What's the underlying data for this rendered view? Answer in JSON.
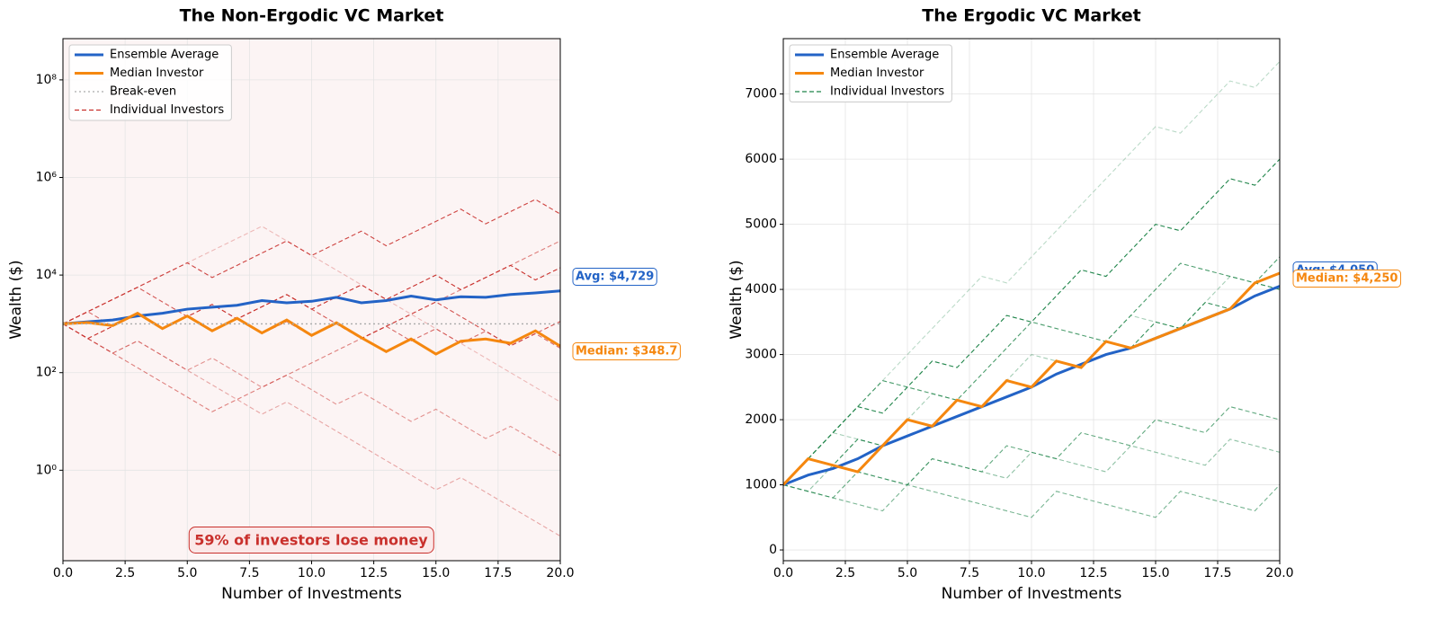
{
  "chart_data": [
    {
      "type": "line",
      "title": "The Non-Ergodic VC Market",
      "xlabel": "Number of Investments",
      "ylabel": "Wealth ($)",
      "ylog": true,
      "grid": true,
      "legend": "upper left",
      "background": "#fcf4f4",
      "x": [
        0,
        1,
        2,
        3,
        4,
        5,
        6,
        7,
        8,
        9,
        10,
        11,
        12,
        13,
        14,
        15,
        16,
        17,
        18,
        19,
        20
      ],
      "xlim": [
        0,
        20
      ],
      "xticks": [
        {
          "value": 0,
          "label": "0.0"
        },
        2.5,
        {
          "value": 5,
          "label": "5.0"
        },
        7.5,
        {
          "value": 10,
          "label": "10.0"
        },
        12.5,
        {
          "value": 15,
          "label": "15.0"
        },
        17.5,
        {
          "value": 20,
          "label": "20.0"
        }
      ],
      "ylim": [
        0.014,
        700000000
      ],
      "yticks": [
        {
          "value": 1,
          "label": "10⁰"
        },
        {
          "value": 100,
          "label": "10²"
        },
        {
          "value": 10000,
          "label": "10⁴"
        },
        {
          "value": 1000000,
          "label": "10⁶"
        },
        {
          "value": 100000000,
          "label": "10⁸"
        }
      ],
      "series": [
        {
          "name": "Ensemble Average",
          "color": "#2363c6",
          "style": "solid",
          "values": [
            1000,
            1100,
            1200,
            1450,
            1650,
            2000,
            2200,
            2400,
            3000,
            2700,
            2900,
            3500,
            2700,
            3000,
            3700,
            3100,
            3600,
            3500,
            4000,
            4300,
            4729
          ]
        },
        {
          "name": "Median Investor",
          "color": "#f5870f",
          "style": "solid",
          "values": [
            1000,
            1060,
            920,
            1650,
            800,
            1450,
            720,
            1300,
            650,
            1200,
            580,
            1050,
            520,
            270,
            490,
            240,
            440,
            490,
            400,
            720,
            348.7
          ]
        },
        {
          "name": "Break-even",
          "color": "#aaaaaa",
          "style": "dotted",
          "value": 1000
        },
        {
          "name": "Individual Investors",
          "color": "#c9302c",
          "style": "dashed",
          "paths": [
            [
              1000,
              1780,
              3160,
              5620,
              10000,
              17800,
              31600,
              56200,
              100000,
              50100,
              25100,
              12600,
              6310,
              3160,
              1580,
              794,
              398,
              200,
              100,
              50.1,
              25.1
            ],
            [
              1000,
              501,
              251,
              126,
              63.1,
              31.6,
              15.8,
              28.2,
              50.1,
              89.1,
              158,
              282,
              501,
              891,
              1580,
              2820,
              5010,
              8910,
              15800,
              28200,
              50100
            ],
            [
              1000,
              1780,
              3160,
              5620,
              10000,
              17800,
              8910,
              15800,
              28200,
              50100,
              25100,
              44700,
              79400,
              39800,
              70800,
              126000,
              224000,
              112000,
              200000,
              355000,
              178000
            ],
            [
              1000,
              501,
              251,
              447,
              224,
              112,
              56.2,
              28.2,
              14.1,
              25.1,
              12.6,
              6.31,
              3.16,
              1.58,
              0.794,
              0.398,
              0.708,
              0.355,
              0.178,
              0.0891,
              0.0447
            ],
            [
              1000,
              1780,
              891,
              1580,
              794,
              1410,
              708,
              1260,
              631,
              1120,
              562,
              1000,
              501,
              891,
              447,
              794,
              398,
              708,
              355,
              631,
              316
            ],
            [
              1000,
              501,
              891,
              1580,
              794,
              1410,
              2510,
              1260,
              2240,
              3980,
              2000,
              3550,
              6310,
              3160,
              5620,
              10000,
              5010,
              8910,
              15800,
              7940,
              14100
            ],
            [
              1000,
              501,
              251,
              447,
              224,
              112,
              200,
              100,
              50.1,
              89.1,
              44.7,
              22.4,
              39.8,
              20,
              10,
              17.8,
              8.91,
              4.47,
              7.94,
              3.98,
              2
            ],
            [
              1000,
              1780,
              3160,
              5620,
              2820,
              1410,
              708,
              1260,
              2240,
              3980,
              2000,
              1000,
              501,
              891,
              1580,
              2820,
              1410,
              708,
              355,
              631,
              1120
            ]
          ]
        }
      ],
      "annotations": [
        {
          "text": "Avg: $4,729",
          "color": "#2363c6"
        },
        {
          "text": "Median: $348.7",
          "color": "#f5870f"
        },
        {
          "text": "59% of investors lose money",
          "color": "#c9302c"
        }
      ]
    },
    {
      "type": "line",
      "title": "The Ergodic VC Market",
      "xlabel": "Number of Investments",
      "ylabel": "Wealth ($)",
      "ylog": false,
      "grid": true,
      "legend": "upper left",
      "background": "#ffffff",
      "x": [
        0,
        1,
        2,
        3,
        4,
        5,
        6,
        7,
        8,
        9,
        10,
        11,
        12,
        13,
        14,
        15,
        16,
        17,
        18,
        19,
        20
      ],
      "xlim": [
        0,
        20
      ],
      "xticks": [
        {
          "value": 0,
          "label": "0.0"
        },
        2.5,
        {
          "value": 5,
          "label": "5.0"
        },
        7.5,
        {
          "value": 10,
          "label": "10.0"
        },
        12.5,
        {
          "value": 15,
          "label": "15.0"
        },
        17.5,
        {
          "value": 20,
          "label": "20.0"
        }
      ],
      "ylim": [
        -165,
        7850
      ],
      "yticks": [
        0,
        1000,
        2000,
        3000,
        4000,
        5000,
        6000,
        7000
      ],
      "series": [
        {
          "name": "Ensemble Average",
          "color": "#2363c6",
          "style": "solid",
          "values": [
            1000,
            1150,
            1250,
            1400,
            1600,
            1750,
            1900,
            2050,
            2200,
            2350,
            2500,
            2700,
            2850,
            3000,
            3100,
            3250,
            3400,
            3550,
            3700,
            3900,
            4050
          ]
        },
        {
          "name": "Median Investor",
          "color": "#f5870f",
          "style": "solid",
          "values": [
            1000,
            1400,
            1300,
            1200,
            1600,
            2000,
            1900,
            2300,
            2200,
            2600,
            2500,
            2900,
            2800,
            3200,
            3100,
            3250,
            3400,
            3550,
            3700,
            4100,
            4250
          ]
        },
        {
          "name": "Individual Investors",
          "color": "#1e8449",
          "style": "dashed",
          "paths": [
            [
              1000,
              1400,
              1800,
              2200,
              2600,
              3000,
              3400,
              3800,
              4200,
              4100,
              4500,
              4900,
              5300,
              5700,
              6100,
              6500,
              6400,
              6800,
              7200,
              7100,
              7500
            ],
            [
              1000,
              900,
              800,
              700,
              600,
              1000,
              900,
              800,
              700,
              600,
              500,
              900,
              800,
              700,
              600,
              500,
              900,
              800,
              700,
              600,
              1000
            ],
            [
              1000,
              1400,
              1300,
              1700,
              1600,
              2000,
              1900,
              2300,
              2200,
              2600,
              2500,
              2900,
              2800,
              3200,
              3100,
              3500,
              3400,
              3800,
              3700,
              4100,
              4000
            ],
            [
              1000,
              1400,
              1800,
              1700,
              1600,
              2000,
              2400,
              2300,
              2200,
              2600,
              3000,
              2900,
              2800,
              3200,
              3600,
              3500,
              3400,
              3800,
              4200,
              4100,
              4000
            ],
            [
              1000,
              900,
              800,
              1200,
              1100,
              1000,
              1400,
              1300,
              1200,
              1600,
              1500,
              1400,
              1800,
              1700,
              1600,
              2000,
              1900,
              1800,
              2200,
              2100,
              2000
            ],
            [
              1000,
              1400,
              1800,
              2200,
              2100,
              2500,
              2900,
              2800,
              3200,
              3600,
              3500,
              3900,
              4300,
              4200,
              4600,
              5000,
              4900,
              5300,
              5700,
              5600,
              6000
            ],
            [
              1000,
              900,
              1300,
              1200,
              1100,
              1000,
              1400,
              1300,
              1200,
              1100,
              1500,
              1400,
              1300,
              1200,
              1600,
              1500,
              1400,
              1300,
              1700,
              1600,
              1500
            ],
            [
              1000,
              1400,
              1800,
              2200,
              2600,
              2500,
              2400,
              2300,
              2700,
              3100,
              3500,
              3400,
              3300,
              3200,
              3600,
              4000,
              4400,
              4300,
              4200,
              4100,
              4500
            ]
          ]
        }
      ],
      "annotations": [
        {
          "text": "Avg: $4,050",
          "color": "#2363c6"
        },
        {
          "text": "Median: $4,250",
          "color": "#f5870f"
        }
      ]
    }
  ]
}
